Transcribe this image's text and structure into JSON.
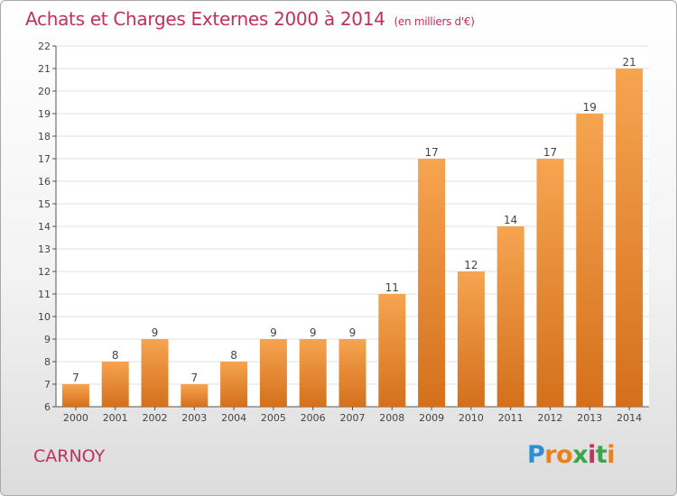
{
  "header": {
    "title": "Achats et Charges Externes 2000 à 2014",
    "unit": "(en milliers d'€)"
  },
  "chart_data": {
    "type": "bar",
    "title": "Achats et Charges Externes 2000 à 2014",
    "unit": "(en milliers d'€)",
    "xlabel": "",
    "ylabel": "",
    "categories": [
      "2000",
      "2001",
      "2002",
      "2003",
      "2004",
      "2005",
      "2006",
      "2007",
      "2008",
      "2009",
      "2010",
      "2011",
      "2012",
      "2013",
      "2014"
    ],
    "values": [
      7,
      8,
      9,
      7,
      8,
      9,
      9,
      9,
      11,
      17,
      12,
      14,
      17,
      19,
      21
    ],
    "ylim": [
      6,
      22
    ],
    "yticks": [
      6,
      7,
      8,
      9,
      10,
      11,
      12,
      13,
      14,
      15,
      16,
      17,
      18,
      19,
      20,
      21,
      22
    ],
    "grid": true,
    "colors": {
      "bar_light": "#f6a450",
      "bar_dark": "#d4701c",
      "grid": "#e0e0e0",
      "axis": "#555555",
      "title": "#c0315b"
    }
  },
  "footer": {
    "commune": "CARNOY",
    "logo": [
      "P",
      "r",
      "o",
      "x",
      "i",
      "t",
      "i"
    ]
  }
}
